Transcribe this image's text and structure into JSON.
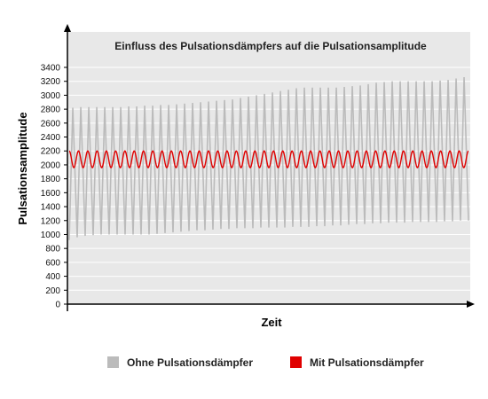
{
  "chart_data": {
    "type": "line",
    "title": "Einfluss des Pulsationsdämpfers auf die Pulsationsamplitude",
    "xlabel": "Zeit",
    "ylabel": "Pulsationsamplitude",
    "ylim": [
      0,
      3400
    ],
    "yticks": [
      0,
      200,
      400,
      600,
      800,
      1000,
      1200,
      1400,
      1600,
      1800,
      2000,
      2200,
      2400,
      2600,
      2800,
      3000,
      3200,
      3400
    ],
    "grid": true,
    "legend_position": "bottom",
    "x_ticks_shown": false,
    "series": [
      {
        "name": "Ohne Pulsationsdämpfer",
        "color": "#bbbbbb",
        "cycles": 50,
        "peaks": [
          2820,
          2830,
          2830,
          2830,
          2830,
          2830,
          2830,
          2840,
          2840,
          2850,
          2850,
          2860,
          2860,
          2870,
          2880,
          2890,
          2900,
          2910,
          2920,
          2930,
          2940,
          2960,
          2980,
          3000,
          3020,
          3040,
          3060,
          3080,
          3100,
          3110,
          3110,
          3110,
          3110,
          3110,
          3120,
          3130,
          3140,
          3160,
          3180,
          3190,
          3200,
          3200,
          3200,
          3200,
          3200,
          3200,
          3210,
          3220,
          3240,
          3260
        ],
        "troughs": [
          920,
          960,
          980,
          990,
          1000,
          1000,
          1000,
          1000,
          1000,
          1000,
          1000,
          1010,
          1020,
          1030,
          1040,
          1050,
          1060,
          1060,
          1070,
          1080,
          1080,
          1090,
          1090,
          1090,
          1100,
          1100,
          1100,
          1100,
          1110,
          1110,
          1110,
          1120,
          1120,
          1130,
          1130,
          1140,
          1150,
          1150,
          1160,
          1160,
          1170,
          1170,
          1170,
          1180,
          1180,
          1180,
          1180,
          1190,
          1190,
          1200
        ]
      },
      {
        "name": "Mit Pulsationsdämpfer",
        "color": "#e00000",
        "cycles": 43,
        "peak": 2200,
        "trough": 1960
      }
    ]
  },
  "colors": {
    "plot_background": "#e8e8e8",
    "grid": "#ffffff",
    "axis": "#000000"
  }
}
